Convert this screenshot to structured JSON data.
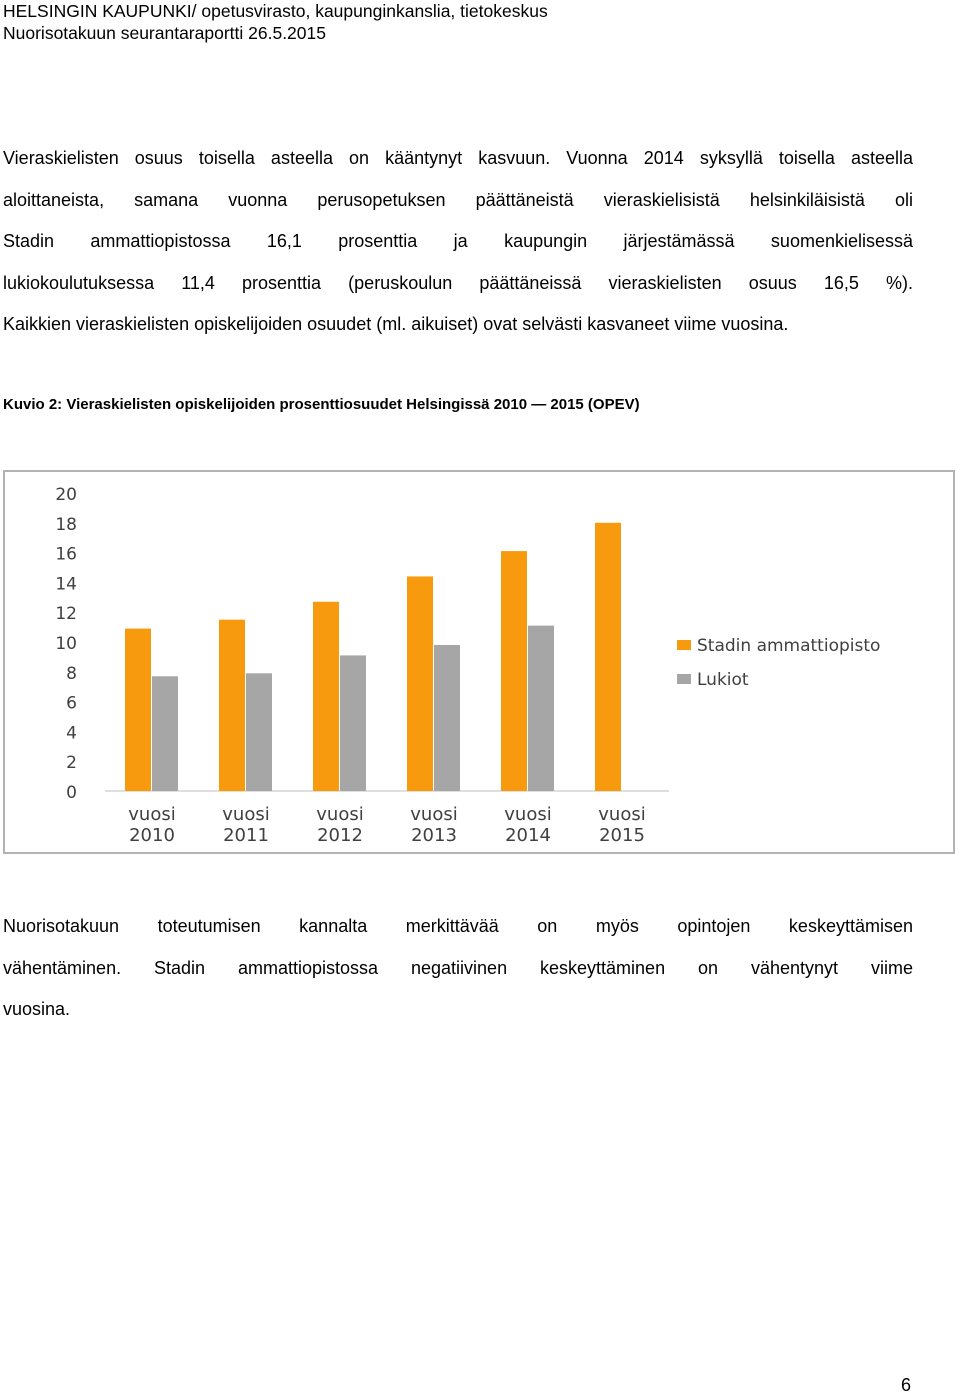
{
  "header": {
    "line1": "HELSINGIN KAUPUNKI/  opetusvirasto, kaupunginkanslia, tietokeskus",
    "line2": "Nuorisotakuun seurantaraportti 26.5.2015"
  },
  "paragraph1": {
    "lines": [
      "Vieraskielisten osuus toisella asteella on kääntynyt kasvuun. Vuonna 2014 syksyllä toisella asteella",
      "aloittaneista, samana vuonna perusopetuksen päättäneistä vieraskielisistä helsinkiläisistä oli",
      "Stadin ammattiopistossa 16,1 prosenttia ja kaupungin järjestämässä suomenkielisessä",
      "lukiokoulutuksessa 11,4 prosenttia (peruskoulun päättäneissä vieraskielisten osuus 16,5 %).",
      "Kaikkien vieraskielisten opiskelijoiden osuudet (ml. aikuiset) ovat selvästi kasvaneet viime vuosina."
    ]
  },
  "caption": "Kuvio 2: Vieraskielisten opiskelijoiden prosenttiosuudet Helsingissä 2010 — 2015 (OPEV)",
  "chart_data": {
    "type": "bar",
    "categories": [
      [
        "vuosi",
        "2010"
      ],
      [
        "vuosi",
        "2011"
      ],
      [
        "vuosi",
        "2012"
      ],
      [
        "vuosi",
        "2013"
      ],
      [
        "vuosi",
        "2014"
      ],
      [
        "vuosi",
        "2015"
      ]
    ],
    "series": [
      {
        "name": "Stadin ammattiopisto",
        "color": "#F79A0E",
        "values": [
          10.9,
          11.5,
          12.7,
          14.4,
          16.1,
          18.0
        ]
      },
      {
        "name": "Lukiot",
        "color": "#A6A6A6",
        "values": [
          7.7,
          7.9,
          9.1,
          9.8,
          11.1,
          null
        ]
      }
    ],
    "ylim": [
      0,
      20
    ],
    "yticks": [
      0,
      2,
      4,
      6,
      8,
      10,
      12,
      14,
      16,
      18,
      20
    ],
    "grid": false,
    "legend_position": "right"
  },
  "paragraph2": {
    "lines": [
      "Nuorisotakuun toteutumisen kannalta merkittävää on myös opintojen keskeyttämisen",
      "vähentäminen. Stadin ammattiopistossa negatiivinen keskeyttäminen on vähentynyt viime",
      "vuosina."
    ]
  },
  "page_number": "6"
}
